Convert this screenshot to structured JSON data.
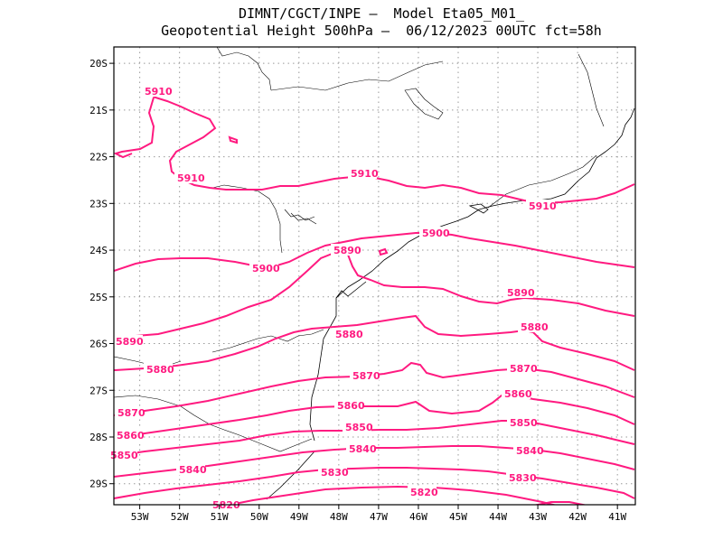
{
  "header": {
    "line1": "DIMNT/CGCT/INPE –  Model Eta05_M01_",
    "line2": "Geopotential Height 500hPa –  06/12/2023 00UTC fct=58h"
  },
  "axes": {
    "lon_ticks": [
      "53W",
      "52W",
      "51W",
      "50W",
      "49W",
      "48W",
      "47W",
      "46W",
      "45W",
      "44W",
      "43W",
      "42W",
      "41W"
    ],
    "lat_ticks": [
      "20S",
      "21S",
      "22S",
      "23S",
      "24S",
      "25S",
      "26S",
      "27S",
      "28S",
      "29S"
    ],
    "lon_range": [
      -53.65,
      -40.55
    ],
    "lat_range": [
      -29.45,
      -19.65
    ]
  },
  "colors": {
    "contour": "#ff1a80",
    "coast": "#000000",
    "grid": "#999999"
  },
  "contours": [
    {
      "value": 5910,
      "labels": [
        "5910",
        "5910",
        "5910",
        "5910"
      ]
    },
    {
      "value": 5900,
      "labels": [
        "5900",
        "5900"
      ]
    },
    {
      "value": 5890,
      "labels": [
        "5890",
        "5890",
        "5890"
      ]
    },
    {
      "value": 5880,
      "labels": [
        "5880",
        "5880",
        "5880"
      ]
    },
    {
      "value": 5870,
      "labels": [
        "5870",
        "5870",
        "5870"
      ]
    },
    {
      "value": 5860,
      "labels": [
        "5860",
        "5860",
        "5860"
      ]
    },
    {
      "value": 5850,
      "labels": [
        "5850",
        "5850",
        "5850"
      ]
    },
    {
      "value": 5840,
      "labels": [
        "5840",
        "5840",
        "5840"
      ]
    },
    {
      "value": 5830,
      "labels": [
        "5830",
        "5830"
      ]
    },
    {
      "value": 5820,
      "labels": [
        "5820",
        "5820"
      ]
    }
  ]
}
